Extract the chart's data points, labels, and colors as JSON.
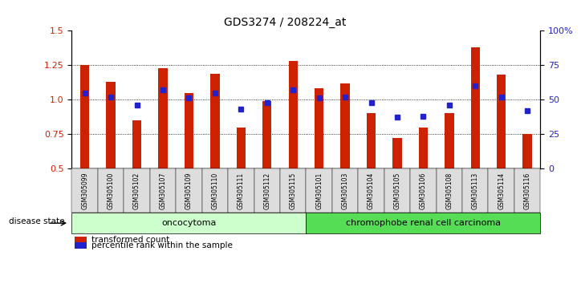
{
  "title": "GDS3274 / 208224_at",
  "samples": [
    "GSM305099",
    "GSM305100",
    "GSM305102",
    "GSM305107",
    "GSM305109",
    "GSM305110",
    "GSM305111",
    "GSM305112",
    "GSM305115",
    "GSM305101",
    "GSM305103",
    "GSM305104",
    "GSM305105",
    "GSM305106",
    "GSM305108",
    "GSM305113",
    "GSM305114",
    "GSM305116"
  ],
  "bar_values": [
    1.25,
    1.13,
    0.85,
    1.23,
    1.05,
    1.19,
    0.8,
    0.99,
    1.28,
    1.08,
    1.12,
    0.9,
    0.72,
    0.8,
    0.9,
    1.38,
    1.18,
    0.75
  ],
  "percentile_values": [
    55,
    52,
    46,
    57,
    51,
    55,
    43,
    48,
    57,
    51,
    52,
    48,
    37,
    38,
    46,
    60,
    52,
    42
  ],
  "bar_color": "#cc2200",
  "percentile_color": "#2222cc",
  "ylim_left": [
    0.5,
    1.5
  ],
  "ylim_right": [
    0,
    100
  ],
  "yticks_left": [
    0.5,
    0.75,
    1.0,
    1.25,
    1.5
  ],
  "yticks_right": [
    0,
    25,
    50,
    75,
    100
  ],
  "ytick_labels_right": [
    "0",
    "25",
    "50",
    "75",
    "100%"
  ],
  "group1_label": "oncocytoma",
  "group2_label": "chromophobe renal cell carcinoma",
  "group1_count": 9,
  "group2_count": 9,
  "legend_bar_label": "transformed count",
  "legend_pct_label": "percentile rank within the sample",
  "disease_state_label": "disease state",
  "group1_color": "#ccffcc",
  "group2_color": "#55dd55",
  "bar_bottom": 0.5,
  "tick_bg_color": "#dddddd"
}
